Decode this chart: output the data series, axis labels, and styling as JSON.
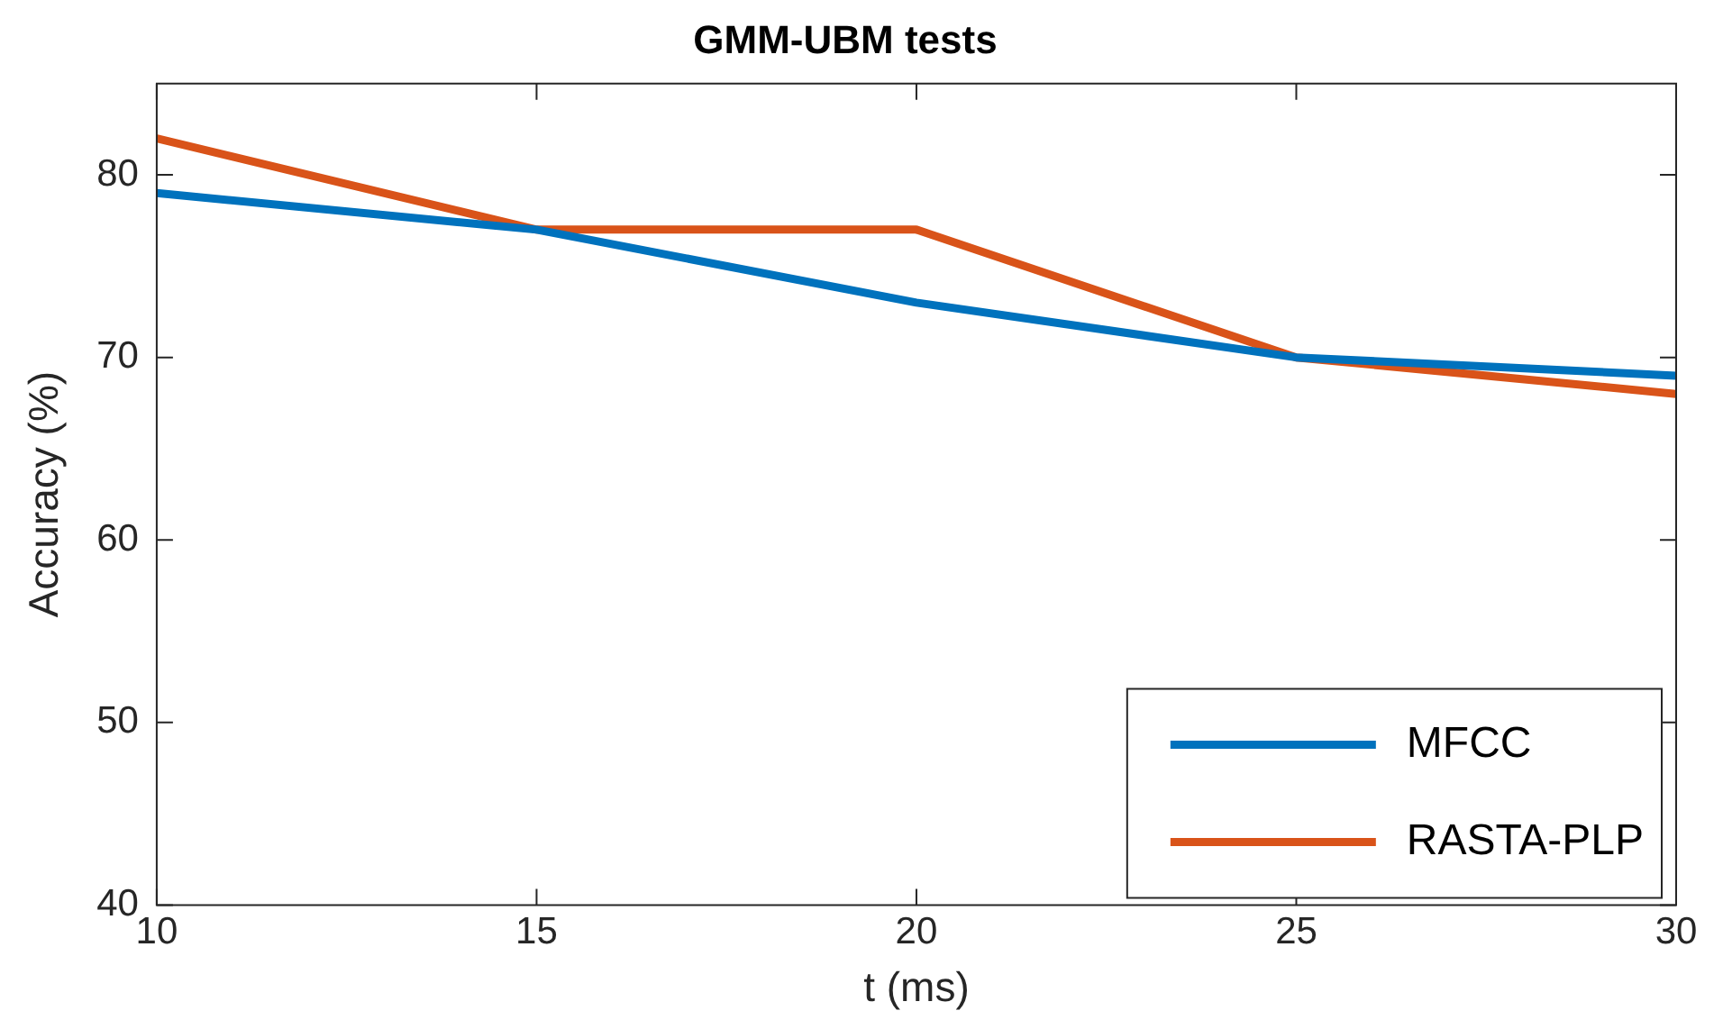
{
  "chart_data": {
    "type": "line",
    "title": "GMM-UBM tests",
    "xlabel": "t (ms)",
    "ylabel": "Accuracy (%)",
    "x": [
      10,
      15,
      20,
      25,
      30
    ],
    "series": [
      {
        "name": "MFCC",
        "color": "#0072bd",
        "values": [
          79,
          77,
          73,
          70,
          69
        ]
      },
      {
        "name": "RASTA-PLP",
        "color": "#d95319",
        "values": [
          82,
          77,
          77,
          70,
          68
        ]
      }
    ],
    "xlim": [
      10,
      30
    ],
    "xticks": [
      10,
      15,
      20,
      25,
      30
    ],
    "ylim": [
      40,
      85
    ],
    "yticks": [
      40,
      50,
      60,
      70,
      80
    ],
    "grid": false,
    "legend": "bottom right",
    "marker": "none",
    "line_style": "solid"
  }
}
